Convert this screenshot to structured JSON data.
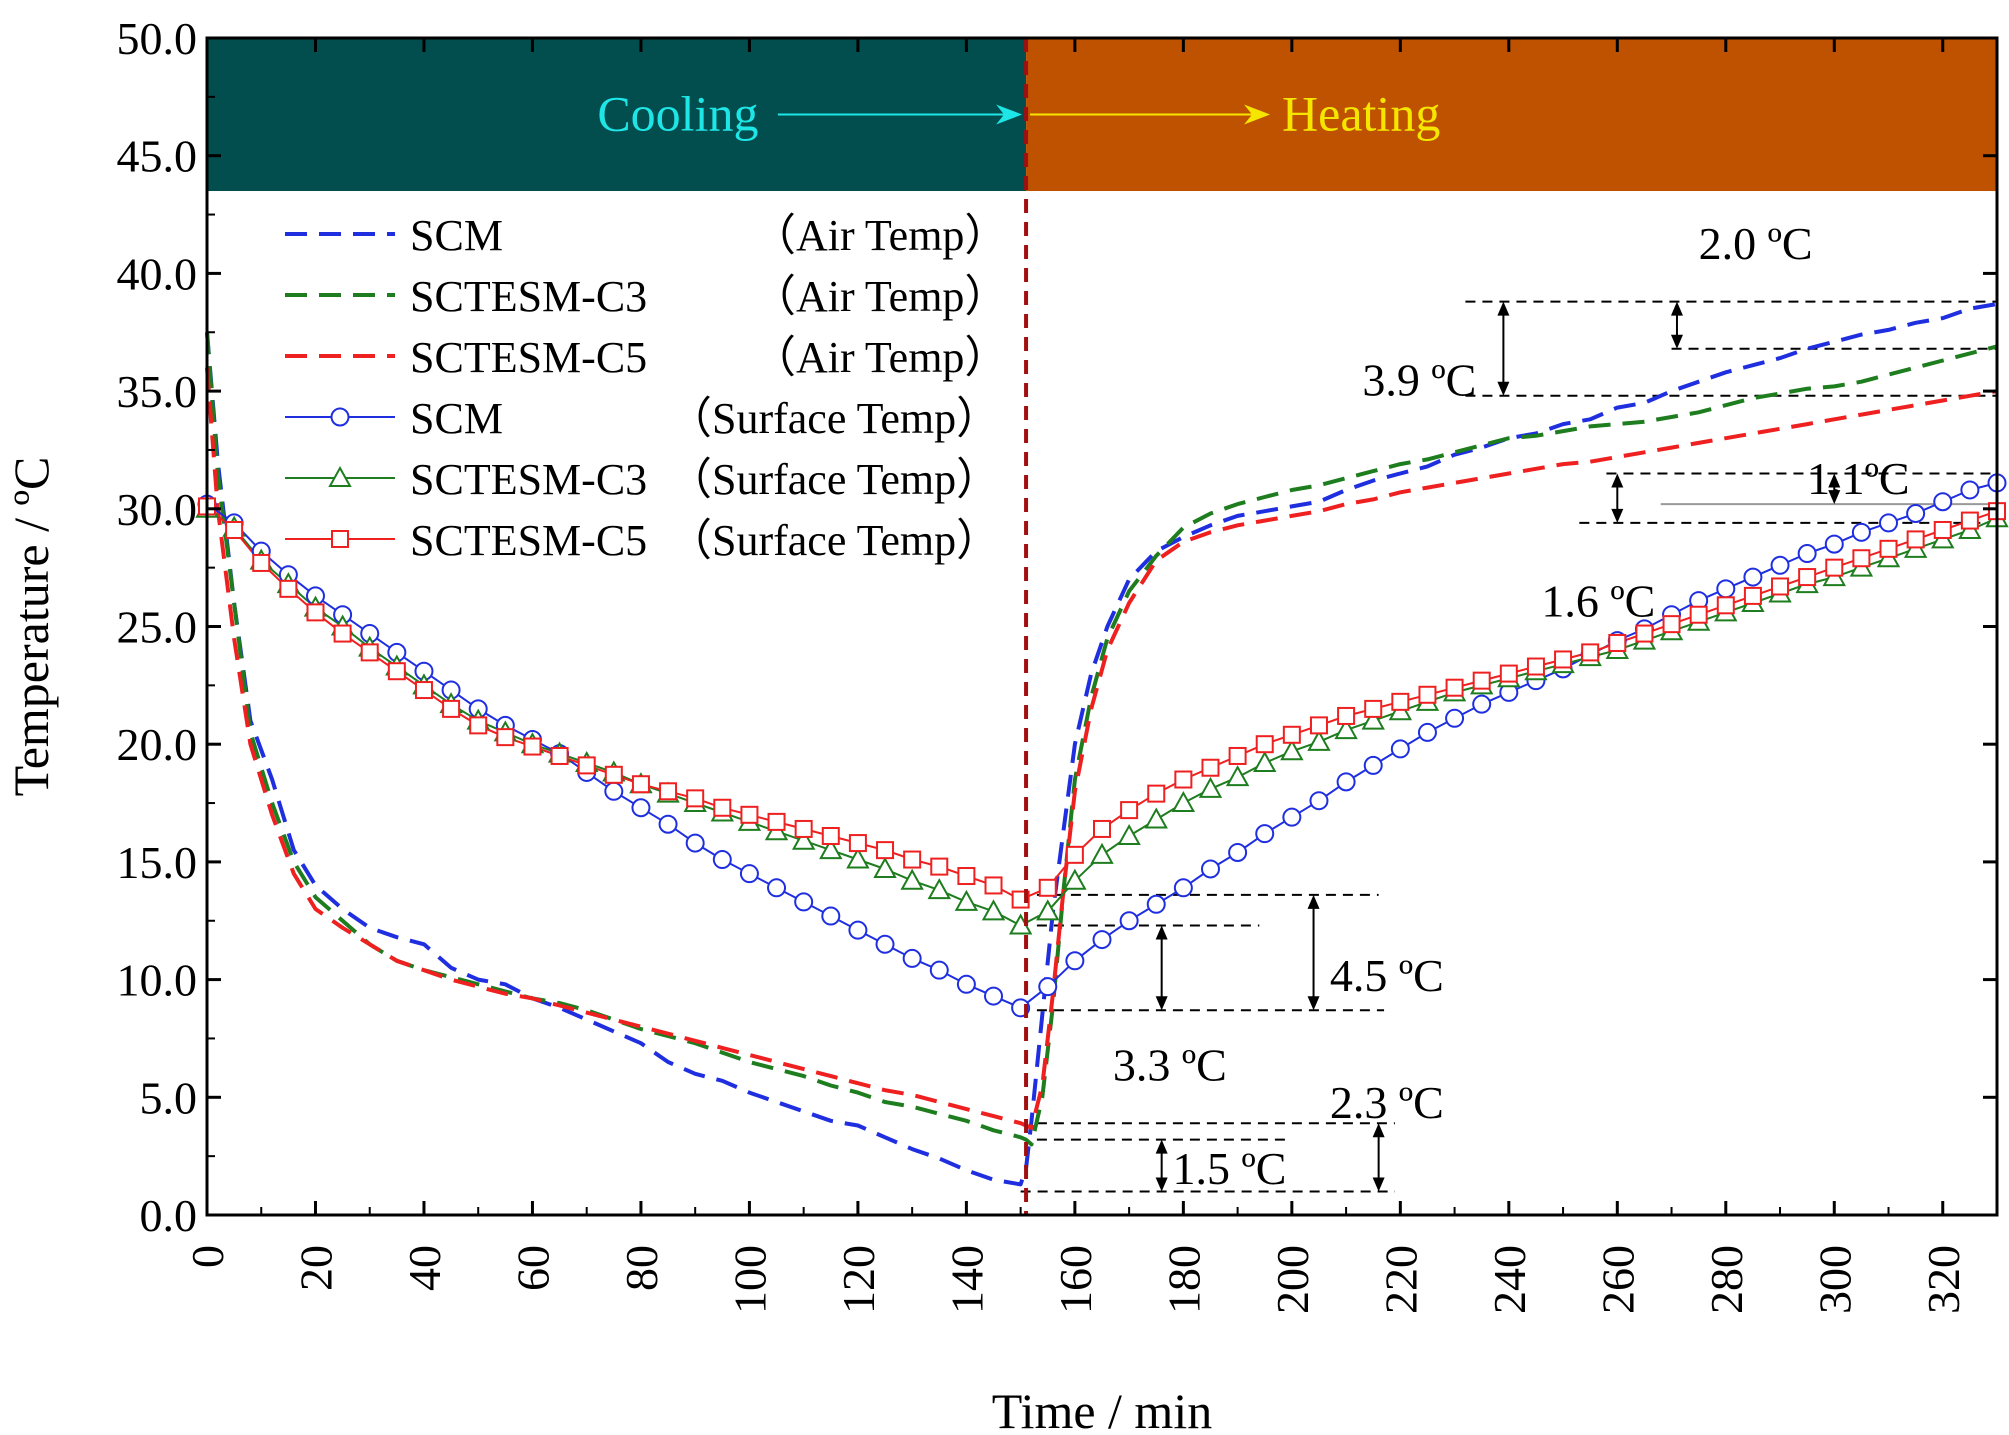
{
  "chart_data": {
    "type": "line",
    "xlabel": "Time / min",
    "ylabel": "Temperature / ºC",
    "xlim": [
      0,
      330
    ],
    "ylim": [
      0,
      50
    ],
    "xticks": [
      0,
      20,
      40,
      60,
      80,
      100,
      120,
      140,
      160,
      180,
      200,
      220,
      240,
      260,
      280,
      300,
      320
    ],
    "yticks": [
      0,
      5,
      10,
      15,
      20,
      25,
      30,
      35,
      40,
      45,
      50
    ],
    "ytick_labels": [
      "0.0",
      "5.0",
      "10.0",
      "15.0",
      "20.0",
      "25.0",
      "30.0",
      "35.0",
      "40.0",
      "45.0",
      "50.0"
    ],
    "phase_divider_x": 151,
    "phases": [
      {
        "label": "Cooling",
        "x_start": 0,
        "x_end": 151,
        "y_bottom": 43.5,
        "color": "#024d4d",
        "text_color": "#1ee6e6"
      },
      {
        "label": "Heating",
        "x_start": 151,
        "x_end": 330,
        "y_bottom": 43.5,
        "color": "#bf5200",
        "text_color": "#f5e600"
      }
    ],
    "series": [
      {
        "name": "SCM",
        "tag": "（Air Temp）",
        "legend_name": "SCM",
        "color": "#1f2fe0",
        "dash": true,
        "marker": "none",
        "x": [
          0,
          2,
          5,
          8,
          12,
          16,
          20,
          25,
          30,
          35,
          40,
          45,
          50,
          55,
          60,
          65,
          70,
          75,
          80,
          85,
          90,
          95,
          100,
          105,
          110,
          115,
          120,
          125,
          130,
          135,
          140,
          145,
          150,
          151,
          152,
          154,
          156,
          158,
          160,
          163,
          166,
          170,
          175,
          180,
          185,
          190,
          195,
          200,
          205,
          210,
          215,
          220,
          225,
          230,
          235,
          240,
          245,
          250,
          255,
          260,
          265,
          270,
          275,
          280,
          285,
          290,
          295,
          300,
          305,
          310,
          315,
          320,
          325,
          330
        ],
        "y": [
          37.5,
          32,
          26,
          21,
          18.5,
          15.5,
          14,
          13,
          12.2,
          11.8,
          11.5,
          10.5,
          10,
          9.8,
          9.2,
          8.8,
          8.3,
          7.8,
          7.3,
          6.5,
          6,
          5.7,
          5.2,
          4.8,
          4.4,
          4,
          3.8,
          3.3,
          2.8,
          2.4,
          1.9,
          1.5,
          1.3,
          2,
          4,
          8.5,
          13,
          16.5,
          20,
          23,
          25,
          27,
          28.2,
          28.8,
          29.3,
          29.7,
          29.9,
          30.1,
          30.3,
          30.8,
          31.2,
          31.5,
          31.8,
          32.3,
          32.6,
          33,
          33.2,
          33.6,
          33.8,
          34.3,
          34.5,
          35,
          35.4,
          35.8,
          36.1,
          36.4,
          36.8,
          37.1,
          37.4,
          37.6,
          37.9,
          38.1,
          38.5,
          38.7
        ]
      },
      {
        "name": "SCTESM-C3",
        "tag": "（Air Temp）",
        "legend_name": "SCTESM-C3",
        "color": "#1e7d1e",
        "dash": true,
        "marker": "none",
        "x": [
          0,
          2,
          5,
          8,
          12,
          16,
          20,
          25,
          30,
          35,
          40,
          45,
          50,
          55,
          60,
          65,
          70,
          75,
          80,
          85,
          90,
          95,
          100,
          105,
          110,
          115,
          120,
          125,
          130,
          135,
          140,
          145,
          150,
          151,
          152,
          154,
          156,
          158,
          160,
          163,
          166,
          170,
          175,
          180,
          185,
          190,
          195,
          200,
          205,
          210,
          215,
          220,
          225,
          230,
          235,
          240,
          245,
          250,
          255,
          260,
          265,
          270,
          275,
          280,
          285,
          290,
          295,
          300,
          305,
          310,
          315,
          320,
          325,
          330
        ],
        "y": [
          37.5,
          31.5,
          26,
          20.5,
          17.5,
          15,
          13.5,
          12.5,
          11.5,
          10.8,
          10.4,
          10.1,
          9.8,
          9.5,
          9.2,
          9,
          8.7,
          8.3,
          7.9,
          7.6,
          7.3,
          6.9,
          6.5,
          6.2,
          5.9,
          5.5,
          5.2,
          4.8,
          4.6,
          4.3,
          4,
          3.6,
          3.3,
          3.2,
          3,
          5,
          9,
          14,
          18.5,
          22,
          24.5,
          26.5,
          28,
          29.2,
          29.8,
          30.2,
          30.5,
          30.8,
          31,
          31.3,
          31.6,
          31.9,
          32.1,
          32.4,
          32.7,
          33,
          33.1,
          33.3,
          33.5,
          33.6,
          33.7,
          33.9,
          34.1,
          34.4,
          34.7,
          34.9,
          35.1,
          35.2,
          35.4,
          35.7,
          36,
          36.3,
          36.6,
          36.9
        ]
      },
      {
        "name": "SCTESM-C5",
        "tag": "（Air Temp）",
        "legend_name": "SCTESM-C5",
        "color": "#ee2020",
        "dash": true,
        "marker": "none",
        "x": [
          0,
          2,
          5,
          8,
          12,
          16,
          20,
          25,
          30,
          35,
          40,
          45,
          50,
          55,
          60,
          65,
          70,
          75,
          80,
          85,
          90,
          95,
          100,
          105,
          110,
          115,
          120,
          125,
          130,
          135,
          140,
          145,
          150,
          151,
          152,
          154,
          156,
          158,
          160,
          163,
          166,
          170,
          175,
          180,
          185,
          190,
          195,
          200,
          205,
          210,
          215,
          220,
          225,
          230,
          235,
          240,
          245,
          250,
          255,
          260,
          265,
          270,
          275,
          280,
          285,
          290,
          295,
          300,
          305,
          310,
          315,
          320,
          325,
          330
        ],
        "y": [
          36,
          30,
          24.5,
          20,
          17,
          14.5,
          13,
          12.2,
          11.5,
          10.8,
          10.4,
          10,
          9.7,
          9.4,
          9.2,
          8.9,
          8.6,
          8.3,
          8,
          7.7,
          7.4,
          7.1,
          6.8,
          6.5,
          6.2,
          5.9,
          5.6,
          5.3,
          5.1,
          4.8,
          4.5,
          4.2,
          3.9,
          3.8,
          3.7,
          5.5,
          9.5,
          14,
          18,
          21.5,
          24,
          26,
          27.8,
          28.6,
          29,
          29.3,
          29.5,
          29.7,
          29.9,
          30.2,
          30.4,
          30.7,
          30.9,
          31.1,
          31.3,
          31.5,
          31.7,
          31.9,
          32,
          32.2,
          32.4,
          32.6,
          32.8,
          33,
          33.2,
          33.4,
          33.6,
          33.8,
          34,
          34.2,
          34.4,
          34.6,
          34.8,
          35
        ]
      },
      {
        "name": "SCM",
        "tag": "（Surface Temp）",
        "legend_name": "SCM",
        "color": "#1f2fe0",
        "dash": false,
        "marker": "circle",
        "x": [
          0,
          5,
          10,
          15,
          20,
          25,
          30,
          35,
          40,
          45,
          50,
          55,
          60,
          65,
          70,
          75,
          80,
          85,
          90,
          95,
          100,
          105,
          110,
          115,
          120,
          125,
          130,
          135,
          140,
          145,
          150,
          155,
          160,
          165,
          170,
          175,
          180,
          185,
          190,
          195,
          200,
          205,
          210,
          215,
          220,
          225,
          230,
          235,
          240,
          245,
          250,
          255,
          260,
          265,
          270,
          275,
          280,
          285,
          290,
          295,
          300,
          305,
          310,
          315,
          320,
          325,
          330
        ],
        "y": [
          30.2,
          29.4,
          28.2,
          27.2,
          26.3,
          25.5,
          24.7,
          23.9,
          23.1,
          22.3,
          21.5,
          20.8,
          20.2,
          19.6,
          18.8,
          18,
          17.3,
          16.6,
          15.8,
          15.1,
          14.5,
          13.9,
          13.3,
          12.7,
          12.1,
          11.5,
          10.9,
          10.4,
          9.8,
          9.3,
          8.8,
          9.7,
          10.8,
          11.7,
          12.5,
          13.2,
          13.9,
          14.7,
          15.4,
          16.2,
          16.9,
          17.6,
          18.4,
          19.1,
          19.8,
          20.5,
          21.1,
          21.7,
          22.2,
          22.7,
          23.2,
          23.8,
          24.4,
          24.9,
          25.5,
          26.1,
          26.6,
          27.1,
          27.6,
          28.1,
          28.5,
          29,
          29.4,
          29.8,
          30.3,
          30.8,
          31.1
        ]
      },
      {
        "name": "SCTESM-C3",
        "tag": "（Surface Temp）",
        "legend_name": "SCTESM-C3",
        "color": "#1e7d1e",
        "dash": false,
        "marker": "triangle",
        "x": [
          0,
          5,
          10,
          15,
          20,
          25,
          30,
          35,
          40,
          45,
          50,
          55,
          60,
          65,
          70,
          75,
          80,
          85,
          90,
          95,
          100,
          105,
          110,
          115,
          120,
          125,
          130,
          135,
          140,
          145,
          150,
          155,
          160,
          165,
          170,
          175,
          180,
          185,
          190,
          195,
          200,
          205,
          210,
          215,
          220,
          225,
          230,
          235,
          240,
          245,
          250,
          255,
          260,
          265,
          270,
          275,
          280,
          285,
          290,
          295,
          300,
          305,
          310,
          315,
          320,
          325,
          330
        ],
        "y": [
          30,
          29.2,
          27.8,
          26.8,
          25.8,
          25,
          24.1,
          23.3,
          22.5,
          21.7,
          21,
          20.5,
          20,
          19.6,
          19.2,
          18.8,
          18.3,
          17.9,
          17.5,
          17.1,
          16.7,
          16.3,
          15.9,
          15.5,
          15.1,
          14.7,
          14.2,
          13.8,
          13.3,
          12.9,
          12.3,
          12.9,
          14.2,
          15.3,
          16.1,
          16.8,
          17.5,
          18.1,
          18.6,
          19.2,
          19.7,
          20.1,
          20.6,
          21,
          21.4,
          21.8,
          22.2,
          22.5,
          22.8,
          23.1,
          23.4,
          23.7,
          24,
          24.4,
          24.8,
          25.2,
          25.6,
          26,
          26.4,
          26.8,
          27.1,
          27.5,
          27.9,
          28.3,
          28.7,
          29.1,
          29.6
        ]
      },
      {
        "name": "SCTESM-C5",
        "tag": "（Surface Temp）",
        "legend_name": "SCTESM-C5",
        "color": "#ee2020",
        "dash": false,
        "marker": "square",
        "x": [
          0,
          5,
          10,
          15,
          20,
          25,
          30,
          35,
          40,
          45,
          50,
          55,
          60,
          65,
          70,
          75,
          80,
          85,
          90,
          95,
          100,
          105,
          110,
          115,
          120,
          125,
          130,
          135,
          140,
          145,
          150,
          155,
          160,
          165,
          170,
          175,
          180,
          185,
          190,
          195,
          200,
          205,
          210,
          215,
          220,
          225,
          230,
          235,
          240,
          245,
          250,
          255,
          260,
          265,
          270,
          275,
          280,
          285,
          290,
          295,
          300,
          305,
          310,
          315,
          320,
          325,
          330
        ],
        "y": [
          30.1,
          29.1,
          27.7,
          26.6,
          25.6,
          24.7,
          23.9,
          23.1,
          22.3,
          21.5,
          20.8,
          20.3,
          19.9,
          19.5,
          19.1,
          18.7,
          18.3,
          18,
          17.7,
          17.3,
          17,
          16.7,
          16.4,
          16.1,
          15.8,
          15.5,
          15.1,
          14.8,
          14.4,
          14,
          13.4,
          13.9,
          15.3,
          16.4,
          17.2,
          17.9,
          18.5,
          19,
          19.5,
          20,
          20.4,
          20.8,
          21.2,
          21.5,
          21.8,
          22.1,
          22.4,
          22.7,
          23,
          23.3,
          23.6,
          23.9,
          24.3,
          24.7,
          25.1,
          25.5,
          25.9,
          26.3,
          26.7,
          27.1,
          27.5,
          27.9,
          28.3,
          28.7,
          29.1,
          29.5,
          29.9
        ]
      }
    ],
    "annotations": [
      {
        "label": "2.0 ºC",
        "y_top": 38.8,
        "y_bottom": 36.8,
        "line_x": [
          263,
          330
        ],
        "arrow_x": 271,
        "top_line_x": [
          232,
          330
        ]
      },
      {
        "label": "3.9 ºC",
        "y_top": 38.8,
        "y_bottom": 34.8,
        "line_x": [
          232,
          330
        ],
        "arrow_x": 239
      },
      {
        "label": "1.1ºC",
        "y_top": 31.5,
        "y_bottom": 30.2,
        "arrow_x": 300
      },
      {
        "label": "1.6 ºC",
        "y_top": 31.5,
        "y_bottom": 29.4,
        "line_x": [
          253,
          330
        ],
        "arrow_x": 260
      },
      {
        "label": "4.5 ºC",
        "y_top": 13.6,
        "y_bottom": 8.7,
        "line_x": [
          151,
          215
        ],
        "arrow_x": 204
      },
      {
        "label": "3.3 ºC",
        "y_top": 12.3,
        "y_bottom": 8.7,
        "line_x": [
          151,
          192
        ],
        "arrow_x": 176
      },
      {
        "label": "2.3 ºC",
        "y_top": 3.9,
        "y_bottom": 1.0,
        "line_x": [
          151,
          218
        ],
        "arrow_x": 216
      },
      {
        "label": "1.5 ºC",
        "y_top": 3.2,
        "y_bottom": 1.0,
        "line_x": [
          151,
          218
        ],
        "arrow_x": 176
      }
    ]
  }
}
